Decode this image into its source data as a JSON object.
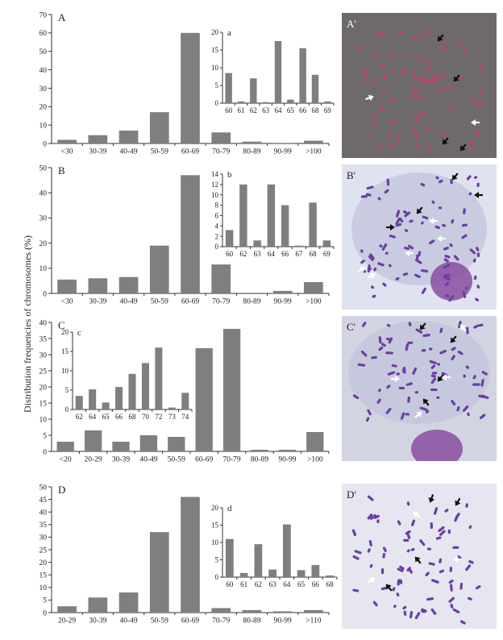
{
  "figure": {
    "ylabel": "Distribution frequencies of chromosomes (%)",
    "photo_labels": [
      "A'",
      "B'",
      "C'",
      "D'"
    ],
    "photo_colors": {
      "A": "#6e6a6a",
      "B": "#dfe2ef",
      "C": "#d3d4e2",
      "D": "#e5e6ef",
      "chromosome_A": "#b8436e",
      "chromosome": "#6a3fa3",
      "nucleus": "#8a4ca0",
      "arrow_dark": "#111111",
      "arrow_light": "#ffffff"
    }
  },
  "chart_data": [
    {
      "type": "bar",
      "panel": "A",
      "categories": [
        "<30",
        "30-39",
        "40-49",
        "50-59",
        "60-69",
        "70-79",
        "80-89",
        "90-99",
        ">100"
      ],
      "values": [
        2,
        4.5,
        7,
        17,
        60,
        6,
        1,
        0.3,
        1.5
      ],
      "ylim": [
        0,
        70
      ],
      "yticks": [
        0,
        10,
        20,
        30,
        40,
        50,
        60,
        70
      ],
      "inset": {
        "label": "a",
        "categories": [
          "60",
          "61",
          "62",
          "63",
          "64",
          "65",
          "66",
          "68",
          "69"
        ],
        "values": [
          8.5,
          0.5,
          7,
          0.3,
          17.5,
          1,
          15.5,
          8,
          0.5
        ],
        "ylim": [
          0,
          20
        ],
        "yticks": [
          0,
          5,
          10,
          15,
          20
        ]
      }
    },
    {
      "type": "bar",
      "panel": "B",
      "categories": [
        "<30",
        "30-39",
        "40-49",
        "50-59",
        "60-69",
        "70-79",
        "80-89",
        "90-99",
        ">100"
      ],
      "values": [
        5.5,
        6,
        6.5,
        19,
        47,
        11.5,
        0,
        1,
        4.5
      ],
      "ylim": [
        0,
        50
      ],
      "yticks": [
        0,
        10,
        20,
        30,
        40,
        50
      ],
      "inset": {
        "label": "b",
        "categories": [
          "60",
          "62",
          "63",
          "64",
          "66",
          "67",
          "68",
          "69"
        ],
        "values": [
          3.2,
          12,
          1.2,
          12,
          8,
          0.2,
          8.5,
          1.2
        ],
        "ylim": [
          0,
          14
        ],
        "yticks": [
          0,
          2,
          4,
          6,
          8,
          10,
          12,
          14
        ]
      }
    },
    {
      "type": "bar",
      "panel": "C",
      "categories": [
        "<20",
        "20-29",
        "30-39",
        "40-49",
        "50-59",
        "60-69",
        "70-79",
        "80-89",
        "90-99",
        ">100"
      ],
      "values": [
        3,
        6.5,
        3,
        5,
        4.5,
        32,
        38,
        0.5,
        0.5,
        6
      ],
      "ylim": [
        0,
        40
      ],
      "yticks": [
        0,
        5,
        10,
        15,
        20,
        25,
        30,
        35,
        40
      ],
      "inset": {
        "label": "c",
        "categories": [
          "62",
          "64",
          "65",
          "66",
          "68",
          "70",
          "72",
          "73",
          "74"
        ],
        "values": [
          3.5,
          5.2,
          1.8,
          5.8,
          9.2,
          12,
          16,
          0.5,
          4.3
        ],
        "ylim": [
          0,
          20
        ],
        "yticks": [
          0,
          5,
          10,
          15,
          20
        ]
      }
    },
    {
      "type": "bar",
      "panel": "D",
      "categories": [
        "20-29",
        "30-39",
        "40-49",
        "50-59",
        "60-69",
        "70-79",
        "80-89",
        "90-99",
        ">110"
      ],
      "values": [
        2.5,
        6,
        8,
        32,
        46,
        1.8,
        1,
        0.5,
        1
      ],
      "ylim": [
        0,
        50
      ],
      "yticks": [
        0,
        5,
        10,
        15,
        20,
        25,
        30,
        35,
        40,
        45,
        50
      ],
      "inset": {
        "label": "d",
        "categories": [
          "60",
          "61",
          "62",
          "63",
          "64",
          "65",
          "66",
          "68"
        ],
        "values": [
          11,
          1.2,
          9.5,
          2.2,
          15.2,
          2,
          3.5,
          0.5
        ],
        "ylim": [
          0,
          20
        ],
        "yticks": [
          0,
          5,
          10,
          15,
          20
        ]
      }
    }
  ]
}
